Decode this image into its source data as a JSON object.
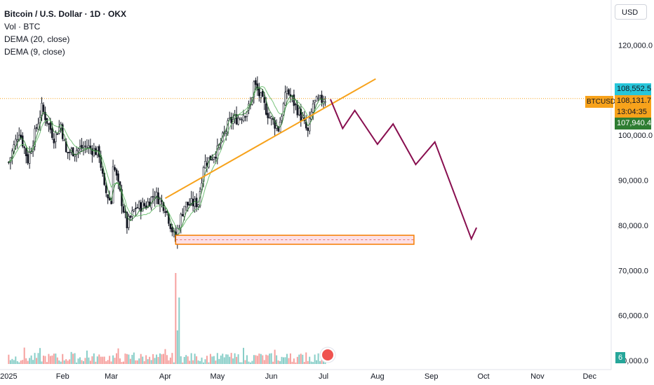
{
  "legend": {
    "title": "Bitcoin / U.S. Dollar · 1D · OKX",
    "vol": "Vol · BTC",
    "dema20": "DEMA (20, close)",
    "dema9": "DEMA (9, close)"
  },
  "currency_button": "USD",
  "price_tags": {
    "high": "108,552.5",
    "current": "108,131.7",
    "countdown": "13:04:35",
    "low": "107,940.4",
    "symbol": "BTCUSD",
    "volume_badge": "6"
  },
  "colors": {
    "up": "#26a69a",
    "down": "#ef5350",
    "candle_body": "#131722",
    "dema_fast": "#2e7d32",
    "dema_slow": "#66bb6a",
    "trendline": "#f7a21b",
    "projection": "#880e4f",
    "zone_border": "#f57c00",
    "zone_fill": "#fde0e5",
    "tag_blue": "#26c6da",
    "tag_orange": "#f7a21b",
    "tag_green": "#2e7d32"
  },
  "chart_data": {
    "type": "candlestick",
    "y_axis": {
      "ticks": [
        50000,
        60000,
        70000,
        80000,
        90000,
        100000,
        120000
      ],
      "tick_labels": [
        "50,000.0",
        "60,000.0",
        "70,000.0",
        "80,000.0",
        "90,000.0",
        "100,000.0",
        "120,000.0"
      ],
      "range": [
        48000,
        130000
      ]
    },
    "x_axis": {
      "tick_labels": [
        "2025",
        "Feb",
        "Mar",
        "Apr",
        "May",
        "Jun",
        "Jul",
        "Aug",
        "Sep",
        "Oct",
        "Nov",
        "Dec"
      ],
      "tick_dates": [
        "2025-01-01",
        "2025-02-01",
        "2025-03-01",
        "2025-04-01",
        "2025-05-01",
        "2025-06-01",
        "2025-07-01",
        "2025-08-01",
        "2025-09-01",
        "2025-10-01",
        "2025-11-01",
        "2025-12-01"
      ],
      "range": [
        "2024-12-27",
        "2025-12-13"
      ]
    },
    "price_line": 108131.7,
    "anchors": [
      [
        "2025-01-01",
        94000
      ],
      [
        "2025-01-07",
        101000
      ],
      [
        "2025-01-12",
        94500
      ],
      [
        "2025-01-20",
        106000
      ],
      [
        "2025-01-27",
        99500
      ],
      [
        "2025-01-31",
        102500
      ],
      [
        "2025-02-03",
        96000
      ],
      [
        "2025-02-15",
        97500
      ],
      [
        "2025-02-22",
        96000
      ],
      [
        "2025-02-25",
        88000
      ],
      [
        "2025-03-01",
        85000
      ],
      [
        "2025-03-02",
        94000
      ],
      [
        "2025-03-10",
        80000
      ],
      [
        "2025-03-15",
        84000
      ],
      [
        "2025-03-21",
        84500
      ],
      [
        "2025-03-26",
        87000
      ],
      [
        "2025-04-01",
        84000
      ],
      [
        "2025-04-07",
        76500
      ],
      [
        "2025-04-08",
        79000
      ],
      [
        "2025-04-12",
        84500
      ],
      [
        "2025-04-20",
        85000
      ],
      [
        "2025-04-23",
        93500
      ],
      [
        "2025-05-01",
        96500
      ],
      [
        "2025-05-08",
        103000
      ],
      [
        "2025-05-14",
        104000
      ],
      [
        "2025-05-20",
        106500
      ],
      [
        "2025-05-22",
        111500
      ],
      [
        "2025-05-31",
        104000
      ],
      [
        "2025-06-05",
        101500
      ],
      [
        "2025-06-10",
        110000
      ],
      [
        "2025-06-17",
        105000
      ],
      [
        "2025-06-22",
        100500
      ],
      [
        "2025-06-25",
        107000
      ],
      [
        "2025-07-02",
        108131.7
      ]
    ],
    "trendline": [
      [
        "2025-04-01",
        86000
      ],
      [
        "2025-07-31",
        112500
      ]
    ],
    "projection": [
      [
        "2025-07-05",
        108000
      ],
      [
        "2025-07-12",
        101500
      ],
      [
        "2025-07-19",
        105500
      ],
      [
        "2025-08-01",
        98000
      ],
      [
        "2025-08-10",
        102500
      ],
      [
        "2025-08-23",
        93500
      ],
      [
        "2025-09-03",
        98500
      ],
      [
        "2025-09-24",
        77000
      ],
      [
        "2025-09-27",
        79500
      ]
    ],
    "zone": {
      "from": "2025-04-07",
      "to": "2025-08-22",
      "low": 75800,
      "high": 77800
    }
  }
}
